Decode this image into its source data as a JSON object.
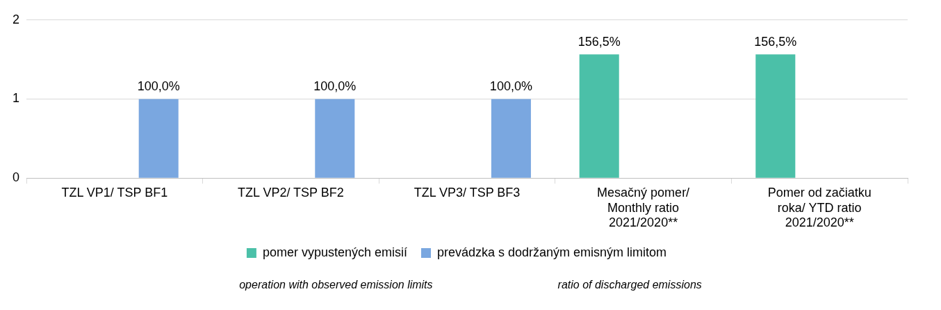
{
  "chart_data": {
    "type": "bar",
    "categories": [
      "TZL VP1/ TSP BF1",
      "TZL VP2/ TSP BF2",
      "TZL VP3/ TSP BF3",
      "Mesačný pomer/ Monthly ratio 2021/2020**",
      "Pomer od začiatku roka/ YTD ratio 2021/2020**"
    ],
    "series": [
      {
        "name": "pomer vypustených emisií",
        "color": "#4bc0a8",
        "values": [
          null,
          null,
          null,
          1.565,
          1.565
        ],
        "value_labels": [
          null,
          null,
          null,
          "156,5%",
          "156,5%"
        ]
      },
      {
        "name": "prevádzka s dodržaným emisným limitom",
        "color": "#7aa7e0",
        "values": [
          1,
          1,
          1,
          null,
          null
        ],
        "value_labels": [
          "100,0%",
          "100,0%",
          "100,0%",
          null,
          null
        ]
      }
    ],
    "ylim": [
      0,
      2
    ],
    "yticks": [
      0,
      1,
      2
    ],
    "grid": "y",
    "legend": "bottom",
    "annotations": [
      "operation with observed emission limits",
      "ratio of discharged emissions"
    ]
  }
}
